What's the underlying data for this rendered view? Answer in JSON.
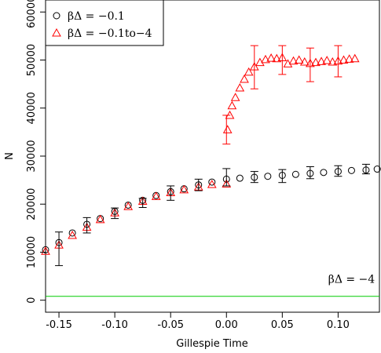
{
  "chart_data": {
    "type": "scatter",
    "xlabel": "Gillespie Time",
    "ylabel": "N",
    "xlim": [
      -0.162,
      0.137
    ],
    "ylim": [
      -2500,
      62500
    ],
    "xticks": [
      -0.15,
      -0.1,
      -0.05,
      0.0,
      0.05,
      0.1
    ],
    "xtick_labels": [
      "-0.15",
      "-0.10",
      "-0.05",
      "0.00",
      "0.05",
      "0.10"
    ],
    "yticks": [
      0,
      10000,
      20000,
      30000,
      40000,
      50000,
      60000
    ],
    "ytick_labels": [
      "0",
      "10000",
      "20000",
      "30000",
      "40000",
      "50000",
      "60000"
    ],
    "legend": {
      "position": "top-left",
      "entries": [
        {
          "marker": "circle",
          "color": "#000000",
          "label": "βΔ = −0.1"
        },
        {
          "marker": "triangle",
          "color": "#ff0000",
          "label": "βΔ = −0.1to−4"
        }
      ]
    },
    "series": [
      {
        "name": "βΔ = −0.1",
        "marker": "circle",
        "color": "#000000",
        "x": [
          -0.162,
          -0.15,
          -0.138,
          -0.125,
          -0.113,
          -0.1,
          -0.088,
          -0.075,
          -0.063,
          -0.05,
          -0.038,
          -0.025,
          -0.013,
          0.0,
          0.012,
          0.025,
          0.037,
          0.05,
          0.062,
          0.075,
          0.087,
          0.1,
          0.112,
          0.125,
          0.135
        ],
        "y": [
          10500,
          12000,
          14000,
          15800,
          17000,
          18500,
          19800,
          20800,
          21800,
          22600,
          23200,
          24000,
          24600,
          25200,
          25400,
          25600,
          25800,
          26000,
          26200,
          26400,
          26600,
          26800,
          27000,
          27100,
          27300
        ],
        "error_bars": [
          {
            "x": -0.15,
            "low": 7200,
            "high": 14200
          },
          {
            "x": -0.125,
            "low": 14000,
            "high": 17200
          },
          {
            "x": -0.1,
            "low": 17000,
            "high": 19200
          },
          {
            "x": -0.075,
            "low": 19300,
            "high": 21200
          },
          {
            "x": -0.05,
            "low": 20800,
            "high": 23800
          },
          {
            "x": -0.025,
            "low": 22800,
            "high": 25200
          },
          {
            "x": 0.0,
            "low": 23800,
            "high": 27400
          },
          {
            "x": 0.025,
            "low": 24500,
            "high": 26800
          },
          {
            "x": 0.05,
            "low": 24500,
            "high": 27200
          },
          {
            "x": 0.075,
            "low": 25300,
            "high": 27800
          },
          {
            "x": 0.1,
            "low": 25800,
            "high": 28000
          },
          {
            "x": 0.125,
            "low": 26300,
            "high": 28300
          }
        ]
      },
      {
        "name": "βΔ = −0.1to−4",
        "marker": "triangle",
        "color": "#ff0000",
        "x": [
          -0.162,
          -0.15,
          -0.138,
          -0.125,
          -0.113,
          -0.1,
          -0.088,
          -0.075,
          -0.063,
          -0.05,
          -0.038,
          -0.025,
          -0.013,
          0.0,
          0.001,
          0.003,
          0.005,
          0.008,
          0.012,
          0.016,
          0.02,
          0.025,
          0.03,
          0.035,
          0.04,
          0.045,
          0.05,
          0.055,
          0.06,
          0.065,
          0.07,
          0.075,
          0.08,
          0.085,
          0.09,
          0.095,
          0.1,
          0.105,
          0.11,
          0.115
        ],
        "y": [
          10200,
          11500,
          13500,
          15200,
          16800,
          18200,
          19500,
          20600,
          21600,
          22400,
          23000,
          23600,
          24100,
          24200,
          35500,
          38500,
          40500,
          42200,
          44200,
          46000,
          47500,
          48600,
          49500,
          50100,
          50400,
          50300,
          50500,
          49200,
          49800,
          50000,
          49600,
          49300,
          49500,
          49700,
          49900,
          49600,
          49800,
          50000,
          50200,
          50300
        ],
        "error_bars": [
          {
            "x": 0.0,
            "low": 32500,
            "high": 38500
          },
          {
            "x": 0.025,
            "low": 44000,
            "high": 53000
          },
          {
            "x": 0.05,
            "low": 47000,
            "high": 53000
          },
          {
            "x": 0.075,
            "low": 45500,
            "high": 52500
          },
          {
            "x": 0.1,
            "low": 46500,
            "high": 53000
          }
        ]
      }
    ],
    "hlines": [
      {
        "y": 800,
        "color": "#00cc00"
      }
    ],
    "annotations": [
      {
        "text": "βΔ = −4",
        "x": 0.112,
        "y": 3600
      }
    ]
  }
}
